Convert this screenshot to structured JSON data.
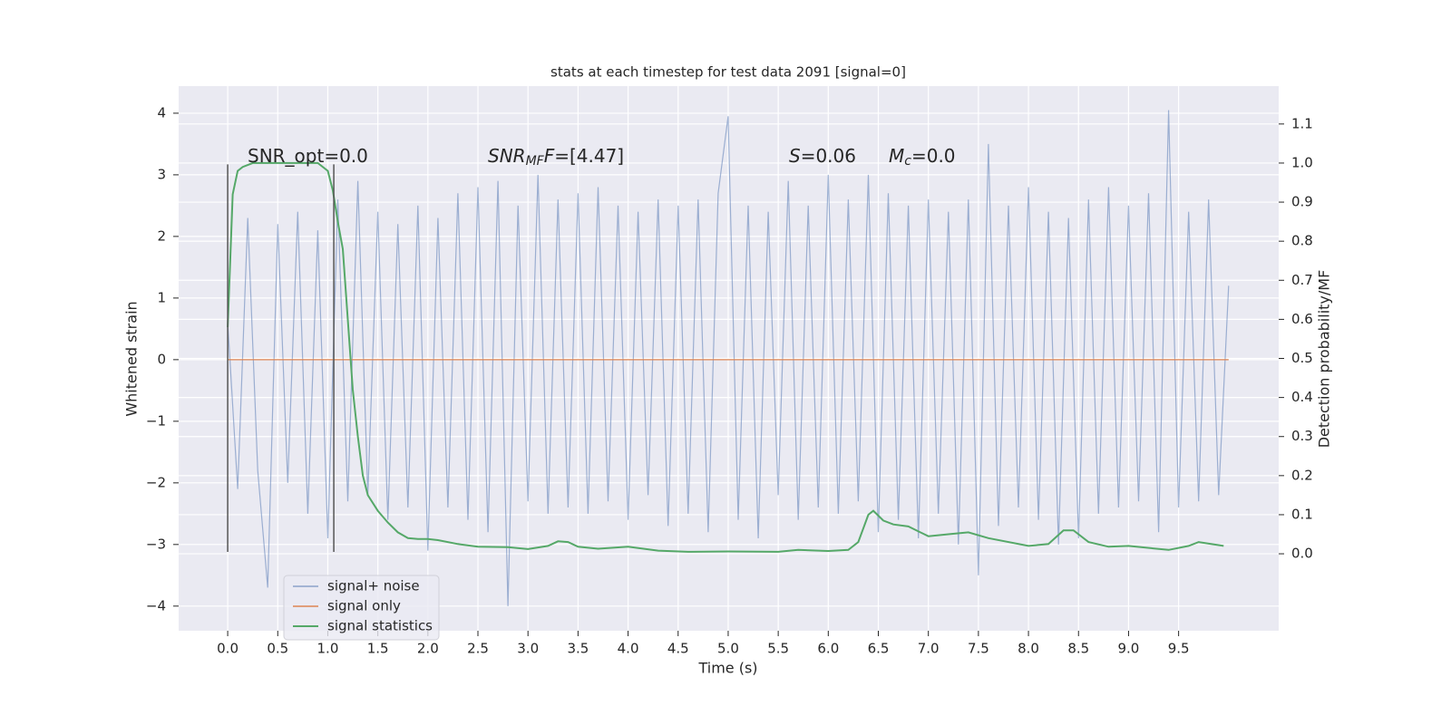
{
  "chart_data": {
    "type": "line",
    "title": "stats at each timestep for test data 2091 [signal=0]",
    "xlabel": "Time (s)",
    "ylabel": "Whitened strain",
    "y2label": "Detection probability/MF",
    "xlim": [
      -0.49,
      10.5
    ],
    "ylim": [
      -4.4,
      4.44
    ],
    "y2lim": [
      -0.197,
      1.197
    ],
    "grid": true,
    "legend": "lower left",
    "xticks": [
      {
        "value": 0,
        "label": "0.0"
      },
      {
        "value": 0.5,
        "label": "0.5"
      },
      {
        "value": 1,
        "label": "1.0"
      },
      {
        "value": 1.5,
        "label": "1.5"
      },
      {
        "value": 2,
        "label": "2.0"
      },
      {
        "value": 2.5,
        "label": "2.5"
      },
      {
        "value": 3,
        "label": "3.0"
      },
      {
        "value": 3.5,
        "label": "3.5"
      },
      {
        "value": 4,
        "label": "4.0"
      },
      {
        "value": 4.5,
        "label": "4.5"
      },
      {
        "value": 5,
        "label": "5.0"
      },
      {
        "value": 5.5,
        "label": "5.5"
      },
      {
        "value": 6,
        "label": "6.0"
      },
      {
        "value": 6.5,
        "label": "6.5"
      },
      {
        "value": 7,
        "label": "7.0"
      },
      {
        "value": 7.5,
        "label": "7.5"
      },
      {
        "value": 8,
        "label": "8.0"
      },
      {
        "value": 8.5,
        "label": "8.5"
      },
      {
        "value": 9,
        "label": "9.0"
      },
      {
        "value": 9.5,
        "label": "9.5"
      }
    ],
    "yticks": [
      {
        "value": -4,
        "label": "−4"
      },
      {
        "value": -3,
        "label": "−3"
      },
      {
        "value": -2,
        "label": "−2"
      },
      {
        "value": -1,
        "label": "−1"
      },
      0,
      1,
      2,
      3,
      4
    ],
    "y2ticks": [
      {
        "value": 0,
        "label": "0.0"
      },
      {
        "value": 0.1,
        "label": "0.1"
      },
      {
        "value": 0.2,
        "label": "0.2"
      },
      {
        "value": 0.3,
        "label": "0.3"
      },
      {
        "value": 0.4,
        "label": "0.4"
      },
      {
        "value": 0.5,
        "label": "0.5"
      },
      {
        "value": 0.6,
        "label": "0.6"
      },
      {
        "value": 0.7,
        "label": "0.7"
      },
      {
        "value": 0.8,
        "label": "0.8"
      },
      {
        "value": 0.9,
        "label": "0.9"
      },
      {
        "value": 1,
        "label": "1.0"
      },
      {
        "value": 1.1,
        "label": "1.1"
      }
    ],
    "series": [
      {
        "name": "signal+ noise",
        "color": "#4c72b0",
        "x": [
          0,
          0.1,
          0.2,
          0.3,
          0.4,
          0.5,
          0.6,
          0.7,
          0.8,
          0.9,
          1,
          1.1,
          1.2,
          1.3,
          1.4,
          1.5,
          1.6,
          1.7,
          1.8,
          1.9,
          2,
          2.1,
          2.2,
          2.3,
          2.4,
          2.5,
          2.6,
          2.7,
          2.8,
          2.9,
          3,
          3.1,
          3.2,
          3.3,
          3.4,
          3.5,
          3.6,
          3.7,
          3.8,
          3.9,
          4,
          4.1,
          4.2,
          4.3,
          4.4,
          4.5,
          4.6,
          4.7,
          4.8,
          4.9,
          5,
          5.1,
          5.2,
          5.3,
          5.4,
          5.5,
          5.6,
          5.7,
          5.8,
          5.9,
          6,
          6.1,
          6.2,
          6.3,
          6.4,
          6.5,
          6.6,
          6.7,
          6.8,
          6.9,
          7,
          7.1,
          7.2,
          7.3,
          7.4,
          7.5,
          7.6,
          7.7,
          7.8,
          7.9,
          8,
          8.1,
          8.2,
          8.3,
          8.4,
          8.5,
          8.6,
          8.7,
          8.8,
          8.9,
          9,
          9.1,
          9.2,
          9.3,
          9.4,
          9.5,
          9.6,
          9.7,
          9.8,
          9.9,
          10
        ],
        "values": [
          0.6,
          -2.1,
          2.3,
          -1.8,
          -3.7,
          2.2,
          -2.0,
          2.4,
          -2.5,
          2.1,
          -2.9,
          2.6,
          -2.3,
          2.9,
          -2.2,
          2.4,
          -2.6,
          2.2,
          -2.4,
          2.5,
          -3.1,
          2.3,
          -2.4,
          2.7,
          -2.6,
          2.8,
          -2.8,
          2.9,
          -4.0,
          2.5,
          -2.3,
          3.0,
          -2.5,
          2.6,
          -2.4,
          2.7,
          -2.5,
          2.8,
          -2.3,
          2.5,
          -2.6,
          2.4,
          -2.2,
          2.6,
          -2.7,
          2.5,
          -2.5,
          2.6,
          -2.8,
          2.7,
          3.95,
          -2.6,
          2.5,
          -2.9,
          2.4,
          -2.2,
          2.9,
          -2.6,
          2.5,
          -2.4,
          3.0,
          -2.5,
          2.6,
          -2.3,
          3.0,
          -2.8,
          2.7,
          -2.6,
          2.5,
          -2.9,
          2.6,
          -2.5,
          2.4,
          -3.0,
          2.6,
          -3.5,
          3.5,
          -2.7,
          2.5,
          -2.4,
          2.8,
          -2.6,
          2.4,
          -3.0,
          2.3,
          -2.9,
          2.6,
          -2.5,
          2.8,
          -2.4,
          2.5,
          -2.3,
          2.7,
          -2.8,
          4.05,
          -2.4,
          2.4,
          -2.3,
          2.6,
          -2.2,
          1.2
        ]
      },
      {
        "name": "signal only",
        "color": "#dd8452",
        "x": [
          0,
          10
        ],
        "values": [
          0,
          0
        ]
      },
      {
        "name": "signal statistics",
        "color": "#55a868",
        "axis": "y2",
        "x": [
          0,
          0.05,
          0.1,
          0.15,
          0.25,
          0.5,
          0.9,
          1.0,
          1.05,
          1.1,
          1.15,
          1.2,
          1.25,
          1.3,
          1.35,
          1.4,
          1.5,
          1.6,
          1.7,
          1.8,
          1.9,
          2.0,
          2.1,
          2.3,
          2.5,
          2.8,
          3.0,
          3.2,
          3.3,
          3.4,
          3.5,
          3.7,
          4.0,
          4.3,
          4.6,
          5.0,
          5.5,
          5.7,
          6.0,
          6.2,
          6.3,
          6.4,
          6.45,
          6.55,
          6.65,
          6.8,
          7.0,
          7.2,
          7.4,
          7.6,
          8.0,
          8.2,
          8.35,
          8.45,
          8.6,
          8.8,
          9.0,
          9.4,
          9.6,
          9.7,
          9.95
        ],
        "values": [
          0.58,
          0.92,
          0.98,
          0.99,
          1.0,
          1.0,
          1.0,
          0.98,
          0.93,
          0.85,
          0.78,
          0.6,
          0.42,
          0.3,
          0.2,
          0.15,
          0.11,
          0.08,
          0.055,
          0.04,
          0.038,
          0.038,
          0.035,
          0.025,
          0.018,
          0.017,
          0.012,
          0.02,
          0.032,
          0.03,
          0.018,
          0.013,
          0.018,
          0.008,
          0.005,
          0.006,
          0.005,
          0.01,
          0.007,
          0.01,
          0.03,
          0.1,
          0.11,
          0.085,
          0.075,
          0.07,
          0.045,
          0.05,
          0.055,
          0.04,
          0.02,
          0.025,
          0.06,
          0.06,
          0.03,
          0.018,
          0.02,
          0.01,
          0.02,
          0.03,
          0.02
        ]
      }
    ],
    "vlines": [
      {
        "x": 0,
        "ymin": -3.12,
        "ymax": 3.17
      },
      {
        "x": 1.06,
        "ymin": -3.12,
        "ymax": 3.17
      }
    ],
    "annotations": [
      [
        {
          "text": "SNR_opt=0.0",
          "style": "normal"
        }
      ],
      [
        {
          "text": "SNR",
          "style": "italic"
        },
        {
          "text": "MF",
          "style": "italic-sub"
        },
        {
          "text": "F",
          "style": "italic"
        },
        {
          "text": "=[4.47]",
          "style": "normal"
        }
      ],
      [
        {
          "text": "S",
          "style": "italic"
        },
        {
          "text": "=0.06",
          "style": "normal"
        }
      ],
      [
        {
          "text": "M",
          "style": "italic"
        },
        {
          "text": "c",
          "style": "italic-sub"
        },
        {
          "text": "=0.0",
          "style": "normal"
        }
      ]
    ]
  }
}
